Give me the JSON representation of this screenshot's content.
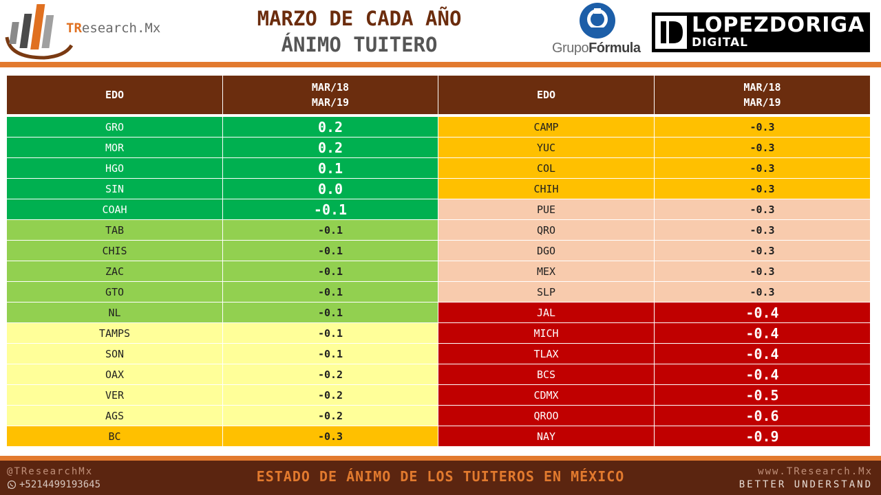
{
  "header": {
    "logo_prefix": "TR",
    "logo_suffix": "esearch.Mx",
    "title_line1": "MARZO DE CADA AÑO",
    "title_line2": "ÁNIMO TUITERO",
    "grupo_formula_prefix": "Grupo",
    "grupo_formula_suffix": "Fórmula",
    "lopez_line1": "LOPEZDORIGA",
    "lopez_line2": "DIGITAL"
  },
  "table": {
    "headers": {
      "edo": "EDO",
      "period_line1": "MAR/18",
      "period_line2": "MAR/19"
    },
    "left": [
      {
        "edo": "GRO",
        "val": "0.2"
      },
      {
        "edo": "MOR",
        "val": "0.2"
      },
      {
        "edo": "HGO",
        "val": "0.1"
      },
      {
        "edo": "SIN",
        "val": "0.0"
      },
      {
        "edo": "COAH",
        "val": "-0.1"
      },
      {
        "edo": "TAB",
        "val": "-0.1"
      },
      {
        "edo": "CHIS",
        "val": "-0.1"
      },
      {
        "edo": "ZAC",
        "val": "-0.1"
      },
      {
        "edo": "GTO",
        "val": "-0.1"
      },
      {
        "edo": "NL",
        "val": "-0.1"
      },
      {
        "edo": "TAMPS",
        "val": "-0.1"
      },
      {
        "edo": "SON",
        "val": "-0.1"
      },
      {
        "edo": "OAX",
        "val": "-0.2"
      },
      {
        "edo": "VER",
        "val": "-0.2"
      },
      {
        "edo": "AGS",
        "val": "-0.2"
      },
      {
        "edo": "BC",
        "val": "-0.3"
      }
    ],
    "right": [
      {
        "edo": "CAMP",
        "val": "-0.3"
      },
      {
        "edo": "YUC",
        "val": "-0.3"
      },
      {
        "edo": "COL",
        "val": "-0.3"
      },
      {
        "edo": "CHIH",
        "val": "-0.3"
      },
      {
        "edo": "PUE",
        "val": "-0.3"
      },
      {
        "edo": "QRO",
        "val": "-0.3"
      },
      {
        "edo": "DGO",
        "val": "-0.3"
      },
      {
        "edo": "MEX",
        "val": "-0.3"
      },
      {
        "edo": "SLP",
        "val": "-0.3"
      },
      {
        "edo": "JAL",
        "val": "-0.4"
      },
      {
        "edo": "MICH",
        "val": "-0.4"
      },
      {
        "edo": "TLAX",
        "val": "-0.4"
      },
      {
        "edo": "BCS",
        "val": "-0.4"
      },
      {
        "edo": "CDMX",
        "val": "-0.5"
      },
      {
        "edo": "QROO",
        "val": "-0.6"
      },
      {
        "edo": "NAY",
        "val": "-0.9"
      }
    ]
  },
  "colors": {
    "header_brown": "#6b2d0e",
    "dark_green": "#00b050",
    "light_green": "#92d050",
    "light_yellow": "#ffff99",
    "orange": "#ffc000",
    "peach": "#f8cbad",
    "red": "#c00000",
    "accent_orange": "#e27a2e"
  },
  "footer": {
    "handle": "@TResearchMx",
    "phone": "+5214499193645",
    "caption": "ESTADO DE ÁNIMO DE LOS TUITEROS EN MÉXICO",
    "website": "www.TResearch.Mx",
    "tagline": "BETTER UNDERSTAND"
  }
}
